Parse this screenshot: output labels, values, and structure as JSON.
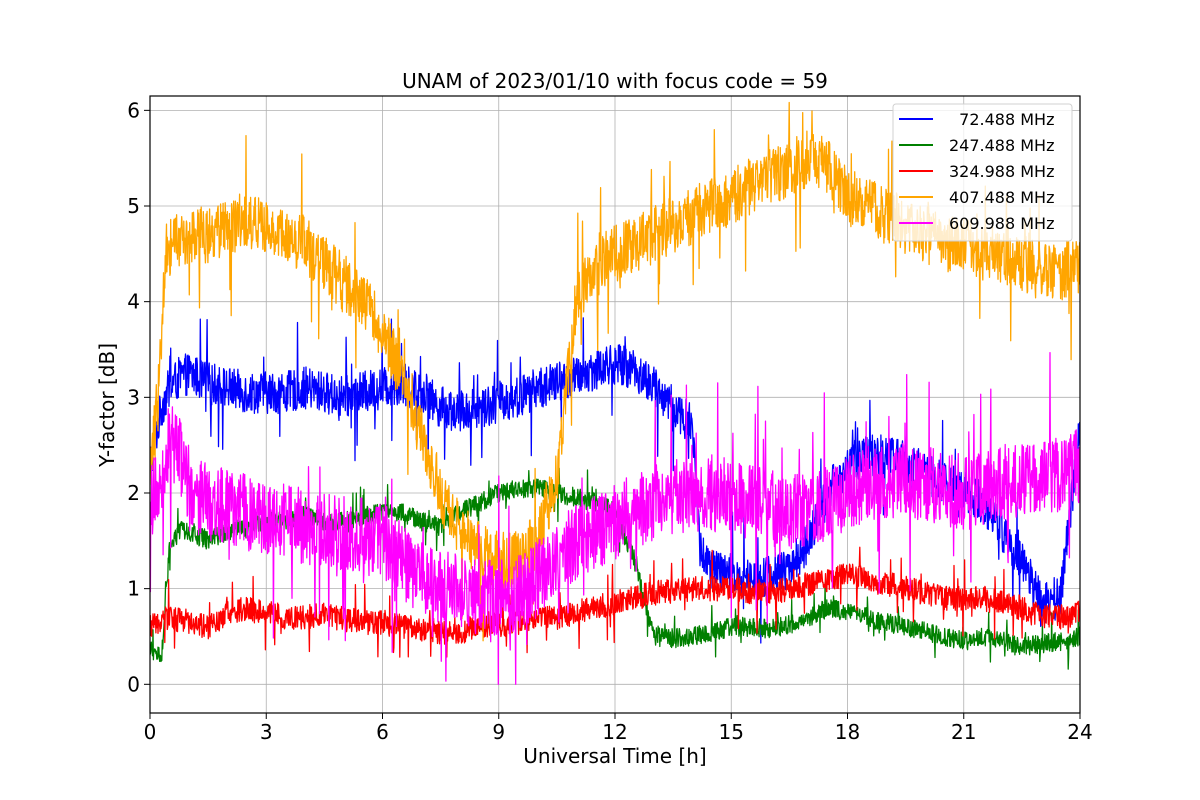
{
  "chart_data": {
    "type": "line",
    "title": "UNAM of 2023/01/10 with focus code = 59",
    "xlabel": "Universal Time [h]",
    "ylabel": "Y-factor [dB]",
    "xlim": [
      0,
      24
    ],
    "ylim": [
      -0.3,
      6.15
    ],
    "xticks": [
      0,
      3,
      6,
      9,
      12,
      15,
      18,
      21,
      24
    ],
    "yticks": [
      0,
      1,
      2,
      3,
      4,
      5,
      6
    ],
    "grid": true,
    "legend_position": "top-right",
    "series": [
      {
        "name": "  72.488 MHz",
        "color": "#0000ff",
        "x": [
          0.0,
          0.3,
          0.5,
          0.75,
          1.0,
          1.5,
          2.0,
          2.5,
          3.0,
          3.5,
          4.0,
          4.5,
          5.0,
          5.5,
          6.0,
          6.5,
          7.0,
          7.5,
          8.0,
          8.5,
          9.0,
          9.5,
          10.0,
          10.5,
          11.0,
          11.5,
          12.0,
          12.5,
          13.0,
          13.5,
          14.0,
          14.2,
          14.5,
          15.0,
          15.5,
          16.0,
          16.5,
          17.0,
          17.5,
          18.0,
          18.5,
          19.0,
          19.5,
          20.0,
          20.5,
          21.0,
          21.5,
          22.0,
          22.5,
          23.0,
          23.5,
          24.0
        ],
        "y": [
          2.3,
          2.9,
          3.1,
          3.2,
          3.25,
          3.15,
          3.1,
          3.05,
          3.05,
          3.05,
          3.1,
          3.05,
          3.0,
          3.05,
          3.1,
          3.15,
          3.05,
          2.9,
          2.85,
          2.9,
          2.95,
          3.0,
          3.1,
          3.15,
          3.2,
          3.3,
          3.35,
          3.3,
          3.1,
          2.9,
          2.7,
          1.4,
          1.2,
          1.15,
          1.1,
          1.15,
          1.2,
          1.5,
          2.0,
          2.3,
          2.4,
          2.4,
          2.35,
          2.2,
          2.1,
          2.05,
          1.9,
          1.6,
          1.3,
          0.85,
          0.9,
          2.7
        ],
        "noise": 0.22
      },
      {
        "name": "247.488 MHz",
        "color": "#008000",
        "x": [
          0.0,
          0.3,
          0.5,
          0.75,
          1.0,
          1.5,
          2.0,
          2.5,
          3.0,
          3.5,
          4.0,
          4.5,
          5.0,
          5.5,
          6.0,
          6.5,
          7.0,
          7.5,
          8.0,
          8.5,
          9.0,
          9.5,
          10.0,
          10.5,
          11.0,
          11.5,
          12.0,
          12.5,
          13.0,
          13.5,
          14.0,
          14.5,
          15.0,
          15.5,
          16.0,
          16.5,
          17.0,
          17.5,
          18.0,
          18.5,
          19.0,
          19.5,
          20.0,
          20.5,
          21.0,
          21.5,
          22.0,
          22.5,
          23.0,
          23.5,
          24.0
        ],
        "y": [
          0.35,
          0.3,
          1.4,
          1.6,
          1.6,
          1.5,
          1.6,
          1.65,
          1.7,
          1.7,
          1.75,
          1.7,
          1.7,
          1.75,
          1.8,
          1.8,
          1.7,
          1.65,
          1.8,
          1.9,
          2.0,
          2.05,
          2.05,
          2.0,
          1.95,
          1.9,
          1.8,
          1.3,
          0.5,
          0.48,
          0.5,
          0.55,
          0.6,
          0.6,
          0.58,
          0.62,
          0.7,
          0.8,
          0.75,
          0.7,
          0.65,
          0.6,
          0.55,
          0.5,
          0.45,
          0.5,
          0.45,
          0.4,
          0.42,
          0.45,
          0.5
        ],
        "noise": 0.1
      },
      {
        "name": "324.988 MHz",
        "color": "#ff0000",
        "x": [
          0.0,
          0.5,
          1.0,
          1.5,
          2.0,
          2.5,
          3.0,
          3.5,
          4.0,
          4.5,
          5.0,
          5.5,
          6.0,
          6.5,
          7.0,
          7.5,
          8.0,
          8.5,
          9.0,
          9.5,
          10.0,
          10.5,
          11.0,
          11.5,
          12.0,
          12.5,
          13.0,
          13.5,
          14.0,
          14.5,
          15.0,
          15.5,
          16.0,
          16.5,
          17.0,
          17.5,
          18.0,
          18.5,
          19.0,
          19.5,
          20.0,
          20.5,
          21.0,
          21.5,
          22.0,
          22.5,
          23.0,
          23.5,
          24.0
        ],
        "y": [
          0.6,
          0.7,
          0.65,
          0.6,
          0.75,
          0.8,
          0.75,
          0.7,
          0.7,
          0.72,
          0.68,
          0.65,
          0.65,
          0.6,
          0.58,
          0.55,
          0.55,
          0.6,
          0.62,
          0.65,
          0.68,
          0.7,
          0.75,
          0.8,
          0.85,
          0.9,
          0.95,
          0.98,
          1.0,
          1.0,
          1.0,
          0.95,
          0.95,
          1.0,
          1.05,
          1.1,
          1.15,
          1.1,
          1.05,
          1.0,
          0.95,
          0.9,
          0.9,
          0.9,
          0.85,
          0.8,
          0.7,
          0.7,
          0.75
        ],
        "noise": 0.13
      },
      {
        "name": "407.488 MHz",
        "color": "#ffa500",
        "x": [
          0.0,
          0.2,
          0.4,
          0.6,
          1.0,
          1.5,
          2.0,
          2.5,
          3.0,
          3.5,
          4.0,
          4.5,
          5.0,
          5.5,
          6.0,
          6.5,
          7.0,
          7.5,
          8.0,
          8.5,
          9.0,
          9.5,
          10.0,
          10.5,
          11.0,
          11.5,
          12.0,
          12.5,
          13.0,
          13.5,
          14.0,
          14.5,
          15.0,
          15.5,
          16.0,
          16.5,
          17.0,
          17.5,
          18.0,
          18.5,
          19.0,
          19.5,
          20.0,
          20.5,
          21.0,
          21.5,
          22.0,
          22.5,
          23.0,
          23.5,
          24.0
        ],
        "y": [
          2.2,
          3.0,
          4.5,
          4.6,
          4.7,
          4.7,
          4.75,
          4.8,
          4.8,
          4.7,
          4.6,
          4.4,
          4.2,
          4.0,
          3.7,
          3.2,
          2.6,
          2.0,
          1.6,
          1.4,
          1.3,
          1.3,
          1.5,
          2.2,
          4.0,
          4.4,
          4.5,
          4.6,
          4.7,
          4.8,
          4.9,
          5.0,
          5.1,
          5.2,
          5.3,
          5.4,
          5.5,
          5.4,
          5.1,
          5.0,
          4.9,
          4.8,
          4.7,
          4.6,
          4.6,
          4.5,
          4.5,
          4.4,
          4.3,
          4.3,
          4.4
        ],
        "noise": 0.3
      },
      {
        "name": "609.988 MHz",
        "color": "#ff00ff",
        "x": [
          0.0,
          0.3,
          0.5,
          0.75,
          1.0,
          1.5,
          2.0,
          2.5,
          3.0,
          3.5,
          4.0,
          4.5,
          5.0,
          5.5,
          6.0,
          6.5,
          7.0,
          7.5,
          8.0,
          8.5,
          9.0,
          9.5,
          10.0,
          10.5,
          11.0,
          11.5,
          12.0,
          12.5,
          13.0,
          13.5,
          14.0,
          14.5,
          15.0,
          15.5,
          16.0,
          16.5,
          17.0,
          17.5,
          18.0,
          18.5,
          19.0,
          19.5,
          20.0,
          20.5,
          21.0,
          21.5,
          22.0,
          22.5,
          23.0,
          23.5,
          24.0
        ],
        "y": [
          1.9,
          2.2,
          2.6,
          2.4,
          2.0,
          1.9,
          1.85,
          1.8,
          1.75,
          1.7,
          1.65,
          1.6,
          1.6,
          1.55,
          1.5,
          1.3,
          1.1,
          1.0,
          0.95,
          0.9,
          0.9,
          0.95,
          1.1,
          1.3,
          1.5,
          1.6,
          1.7,
          1.8,
          1.9,
          1.95,
          2.0,
          2.0,
          1.95,
          1.9,
          1.85,
          1.8,
          1.85,
          1.9,
          2.0,
          2.1,
          2.1,
          2.15,
          2.1,
          2.05,
          2.0,
          2.05,
          2.1,
          2.15,
          2.2,
          2.2,
          2.3
        ],
        "noise": 0.4
      }
    ]
  }
}
